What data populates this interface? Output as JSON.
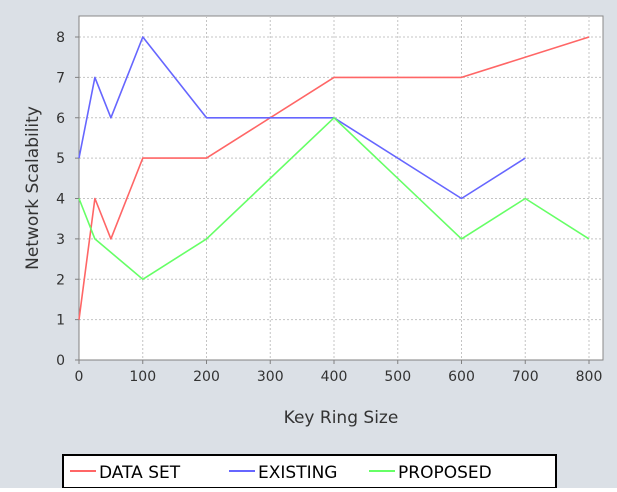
{
  "chart_data": {
    "type": "line",
    "title": "",
    "xlabel": "Key Ring Size",
    "ylabel": "Network Scalability",
    "xlim": [
      0,
      820
    ],
    "ylim": [
      0,
      8.5
    ],
    "x_ticks": [
      0,
      100,
      200,
      300,
      400,
      500,
      600,
      700,
      800
    ],
    "y_ticks": [
      0,
      1,
      2,
      3,
      4,
      5,
      6,
      7,
      8
    ],
    "grid": true,
    "legend_position": "bottom",
    "series": [
      {
        "name": "DATA SET",
        "color": "#ff6666",
        "x": [
          0,
          25,
          50,
          100,
          200,
          400,
          600,
          800
        ],
        "y": [
          1,
          4,
          3,
          5,
          5,
          7,
          7,
          8
        ]
      },
      {
        "name": "EXISTING",
        "color": "#6666ff",
        "x": [
          0,
          25,
          50,
          100,
          200,
          400,
          600,
          700
        ],
        "y": [
          5,
          7,
          6,
          8,
          6,
          6,
          4,
          5
        ]
      },
      {
        "name": "PROPOSED",
        "color": "#66ff66",
        "x": [
          0,
          25,
          100,
          200,
          400,
          600,
          700,
          800
        ],
        "y": [
          4,
          3,
          2,
          3,
          6,
          3,
          4,
          3
        ]
      }
    ]
  }
}
